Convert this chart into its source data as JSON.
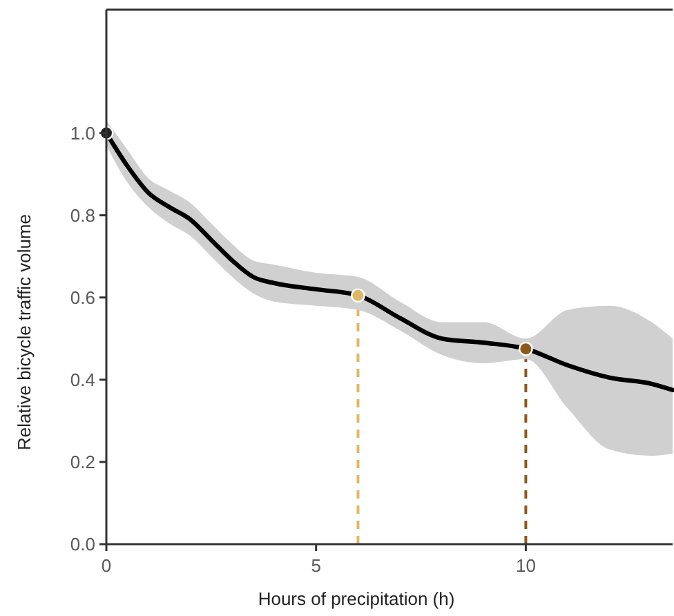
{
  "chart_data": {
    "type": "line",
    "xlabel": "Hours of precipitation (h)",
    "ylabel": "Relative bicycle traffic volume",
    "xlim": [
      0,
      13.5
    ],
    "ylim": [
      0,
      1.3
    ],
    "xticks": [
      0,
      5,
      10
    ],
    "yticks": [
      {
        "value": 0,
        "label": "0.0"
      },
      0.2,
      0.4,
      0.6,
      0.8,
      {
        "value": 1,
        "label": "1.0"
      }
    ],
    "grid": false,
    "series": [
      {
        "color": "#000000",
        "marker": "none",
        "x": [
          0,
          0.5,
          1,
          1.5,
          2,
          2.5,
          3,
          3.5,
          4,
          5,
          6,
          7,
          8,
          9,
          10,
          11,
          12,
          13,
          13.5
        ],
        "values": [
          1.0,
          0.92,
          0.855,
          0.82,
          0.79,
          0.74,
          0.69,
          0.65,
          0.635,
          0.62,
          0.605,
          0.55,
          0.5,
          0.49,
          0.475,
          0.435,
          0.405,
          0.39,
          0.375
        ],
        "lower": [
          0.97,
          0.88,
          0.82,
          0.78,
          0.75,
          0.7,
          0.65,
          0.61,
          0.59,
          0.58,
          0.57,
          0.52,
          0.46,
          0.44,
          0.45,
          0.33,
          0.23,
          0.215,
          0.22
        ],
        "upper": [
          1.03,
          0.96,
          0.89,
          0.86,
          0.83,
          0.78,
          0.73,
          0.69,
          0.68,
          0.66,
          0.65,
          0.59,
          0.54,
          0.54,
          0.5,
          0.57,
          0.58,
          0.54,
          0.5
        ]
      },
      {
        "type": "scatter",
        "marker": "circle",
        "x": [
          0,
          6,
          10
        ],
        "values": [
          1.0,
          0.605,
          0.475
        ],
        "colors": [
          "#222222",
          "#e0b865",
          "#8b5a1a"
        ]
      }
    ],
    "ref_lines": [
      {
        "axis": "x",
        "value": 6,
        "color": "#e0b865",
        "line_style": "dashed"
      },
      {
        "axis": "x",
        "value": 10,
        "color": "#8b5a1a",
        "line_style": "dashed"
      }
    ]
  }
}
